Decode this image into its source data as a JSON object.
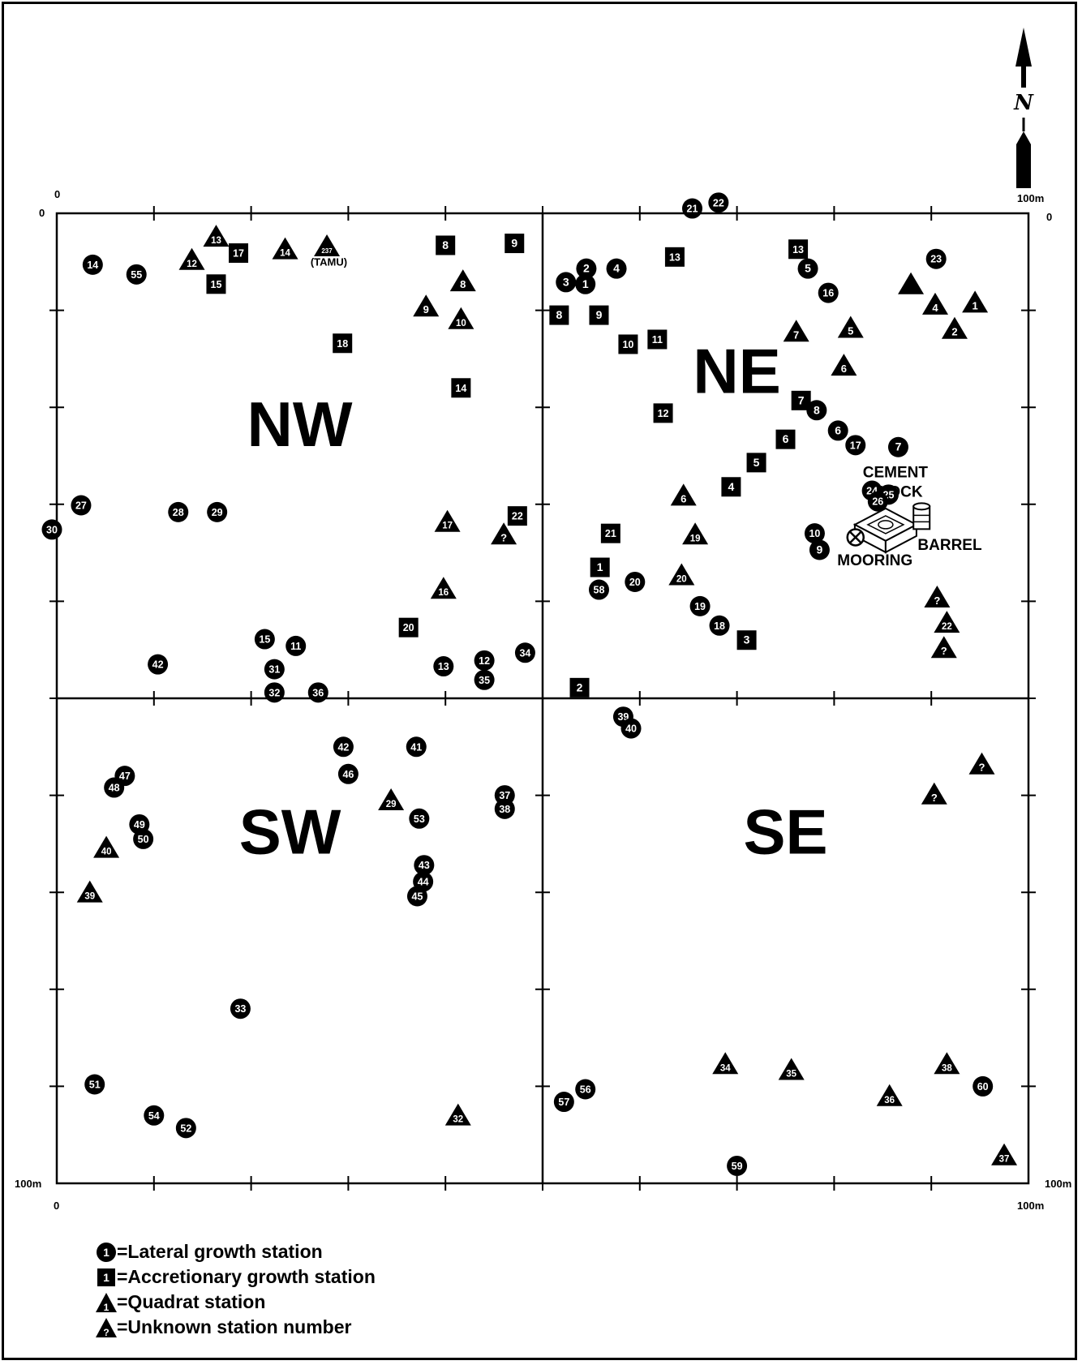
{
  "map": {
    "north_label": "N",
    "quadrants": [
      {
        "label": "NW",
        "x": 25,
        "y": 24
      },
      {
        "label": "NE",
        "x": 70,
        "y": 18.5
      },
      {
        "label": "SW",
        "x": 24,
        "y": 66
      },
      {
        "label": "SE",
        "x": 75,
        "y": 66
      }
    ],
    "axis_labels": {
      "top_left_outer": "0",
      "top_left_inner": "0",
      "top_right_outer": "100m",
      "top_right_inner": "0",
      "bottom_left_outer": "100m",
      "bottom_left_below": "0",
      "bottom_right_outer": "100m",
      "bottom_right_below": "100m"
    },
    "annotations": {
      "cement_block": "CEMENT\nBLOCK",
      "barrel": "BARREL",
      "mooring": "MOORING",
      "tamu": "(TAMU)"
    },
    "lateral_stations": [
      {
        "n": "14",
        "x": 3.7,
        "y": 5.3
      },
      {
        "n": "55",
        "x": 8.2,
        "y": 6.3
      },
      {
        "n": "27",
        "x": 2.5,
        "y": 30.1
      },
      {
        "n": "30",
        "x": -0.5,
        "y": 32.6
      },
      {
        "n": "28",
        "x": 12.5,
        "y": 30.8
      },
      {
        "n": "29",
        "x": 16.5,
        "y": 30.8
      },
      {
        "n": "33",
        "x": 18.9,
        "y": 82.0
      },
      {
        "n": "15",
        "x": 21.4,
        "y": 43.9
      },
      {
        "n": "11",
        "x": 24.6,
        "y": 44.6
      },
      {
        "n": "31",
        "x": 22.4,
        "y": 47.0
      },
      {
        "n": "32",
        "x": 22.4,
        "y": 49.4
      },
      {
        "n": "36",
        "x": 26.9,
        "y": 49.4
      },
      {
        "n": "42",
        "x": 10.4,
        "y": 46.5
      },
      {
        "n": "13",
        "x": 39.8,
        "y": 46.7
      },
      {
        "n": "12",
        "x": 44.0,
        "y": 46.1
      },
      {
        "n": "35",
        "x": 44.0,
        "y": 48.1
      },
      {
        "n": "34",
        "x": 48.2,
        "y": 45.3
      },
      {
        "n": "21",
        "x": 65.4,
        "y": -0.5
      },
      {
        "n": "22",
        "x": 68.1,
        "y": -1.1
      },
      {
        "n": "2",
        "x": 54.5,
        "y": 5.7
      },
      {
        "n": "4",
        "x": 57.6,
        "y": 5.7
      },
      {
        "n": "3",
        "x": 52.4,
        "y": 7.1
      },
      {
        "n": "1",
        "x": 54.4,
        "y": 7.3
      },
      {
        "n": "23",
        "x": 90.5,
        "y": 4.7
      },
      {
        "n": "5",
        "x": 77.3,
        "y": 5.7
      },
      {
        "n": "16",
        "x": 79.4,
        "y": 8.2
      },
      {
        "n": "8",
        "x": 78.2,
        "y": 20.3
      },
      {
        "n": "6",
        "x": 80.4,
        "y": 22.4
      },
      {
        "n": "17",
        "x": 82.2,
        "y": 23.9
      },
      {
        "n": "7",
        "x": 86.6,
        "y": 24.1
      },
      {
        "n": "24",
        "x": 83.9,
        "y": 28.6
      },
      {
        "n": "25",
        "x": 85.6,
        "y": 29.0
      },
      {
        "n": "26",
        "x": 84.5,
        "y": 29.7
      },
      {
        "n": "10",
        "x": 78.0,
        "y": 33.0
      },
      {
        "n": "9",
        "x": 78.5,
        "y": 34.7
      },
      {
        "n": "58",
        "x": 55.8,
        "y": 38.8
      },
      {
        "n": "20",
        "x": 59.5,
        "y": 38.0
      },
      {
        "n": "19",
        "x": 66.2,
        "y": 40.5
      },
      {
        "n": "18",
        "x": 68.2,
        "y": 42.5
      },
      {
        "n": "39",
        "x": 58.3,
        "y": 51.9
      },
      {
        "n": "40",
        "x": 59.1,
        "y": 53.1
      },
      {
        "n": "42",
        "x": 29.5,
        "y": 55.0
      },
      {
        "n": "41",
        "x": 37.0,
        "y": 55.0
      },
      {
        "n": "47",
        "x": 7.0,
        "y": 58.0
      },
      {
        "n": "48",
        "x": 5.9,
        "y": 59.2
      },
      {
        "n": "46",
        "x": 30.0,
        "y": 57.8
      },
      {
        "n": "37",
        "x": 46.1,
        "y": 60.0
      },
      {
        "n": "38",
        "x": 46.1,
        "y": 61.4
      },
      {
        "n": "53",
        "x": 37.3,
        "y": 62.4
      },
      {
        "n": "49",
        "x": 8.5,
        "y": 63.0
      },
      {
        "n": "50",
        "x": 8.9,
        "y": 64.5
      },
      {
        "n": "43",
        "x": 37.8,
        "y": 67.2
      },
      {
        "n": "44",
        "x": 37.7,
        "y": 68.9
      },
      {
        "n": "45",
        "x": 37.1,
        "y": 70.4
      },
      {
        "n": "51",
        "x": 3.9,
        "y": 89.8
      },
      {
        "n": "54",
        "x": 10.0,
        "y": 93.0
      },
      {
        "n": "52",
        "x": 13.3,
        "y": 94.3
      },
      {
        "n": "56",
        "x": 54.4,
        "y": 90.3
      },
      {
        "n": "57",
        "x": 52.2,
        "y": 91.6
      },
      {
        "n": "60",
        "x": 95.3,
        "y": 90.0
      },
      {
        "n": "59",
        "x": 70.0,
        "y": 98.2
      }
    ],
    "accretionary_stations": [
      {
        "n": "17",
        "x": 18.7,
        "y": 4.1
      },
      {
        "n": "15",
        "x": 16.4,
        "y": 7.3
      },
      {
        "n": "18",
        "x": 29.4,
        "y": 13.4
      },
      {
        "n": "8",
        "x": 40.0,
        "y": 3.3
      },
      {
        "n": "9",
        "x": 47.1,
        "y": 3.1
      },
      {
        "n": "14",
        "x": 41.6,
        "y": 18.0
      },
      {
        "n": "22",
        "x": 47.4,
        "y": 31.2
      },
      {
        "n": "20",
        "x": 36.2,
        "y": 42.7
      },
      {
        "n": "13",
        "x": 63.6,
        "y": 4.5
      },
      {
        "n": "8",
        "x": 51.7,
        "y": 10.5
      },
      {
        "n": "9",
        "x": 55.8,
        "y": 10.5
      },
      {
        "n": "10",
        "x": 58.8,
        "y": 13.5
      },
      {
        "n": "11",
        "x": 61.8,
        "y": 13.0
      },
      {
        "n": "12",
        "x": 62.4,
        "y": 20.6
      },
      {
        "n": "13",
        "x": 76.3,
        "y": 3.7
      },
      {
        "n": "7",
        "x": 76.6,
        "y": 19.3
      },
      {
        "n": "6",
        "x": 75.0,
        "y": 23.3
      },
      {
        "n": "5",
        "x": 72.0,
        "y": 25.7
      },
      {
        "n": "4",
        "x": 69.4,
        "y": 28.2
      },
      {
        "n": "21",
        "x": 57.0,
        "y": 33.0
      },
      {
        "n": "1",
        "x": 55.9,
        "y": 36.5
      },
      {
        "n": "3",
        "x": 71.0,
        "y": 44.0
      },
      {
        "n": "2",
        "x": 53.8,
        "y": 48.9
      }
    ],
    "quadrat_stations": [
      {
        "n": "13",
        "x": 16.4,
        "y": 2.6
      },
      {
        "n": "12",
        "x": 13.9,
        "y": 5.0
      },
      {
        "n": "14",
        "x": 23.5,
        "y": 3.9
      },
      {
        "n": "237",
        "x": 27.8,
        "y": 3.6
      },
      {
        "n": "8",
        "x": 41.8,
        "y": 7.2
      },
      {
        "n": "9",
        "x": 38.0,
        "y": 9.8
      },
      {
        "n": "10",
        "x": 41.6,
        "y": 11.1
      },
      {
        "n": "17",
        "x": 40.2,
        "y": 32.0
      },
      {
        "n": "16",
        "x": 39.8,
        "y": 38.9
      },
      {
        "n": "7",
        "x": 76.1,
        "y": 12.4
      },
      {
        "n": "5",
        "x": 81.7,
        "y": 12.0
      },
      {
        "n": "6",
        "x": 81.0,
        "y": 15.9
      },
      {
        "n": "",
        "x": 87.9,
        "y": 7.5
      },
      {
        "n": "4",
        "x": 90.4,
        "y": 9.6
      },
      {
        "n": "1",
        "x": 94.5,
        "y": 9.4
      },
      {
        "n": "2",
        "x": 92.4,
        "y": 12.1
      },
      {
        "n": "6",
        "x": 64.5,
        "y": 29.3
      },
      {
        "n": "19",
        "x": 65.7,
        "y": 33.3
      },
      {
        "n": "20",
        "x": 64.3,
        "y": 37.5
      },
      {
        "n": "22",
        "x": 91.6,
        "y": 42.4
      },
      {
        "n": "29",
        "x": 34.4,
        "y": 60.7
      },
      {
        "n": "40",
        "x": 5.1,
        "y": 65.6
      },
      {
        "n": "39",
        "x": 3.4,
        "y": 70.2
      },
      {
        "n": "32",
        "x": 41.3,
        "y": 93.2
      },
      {
        "n": "34",
        "x": 68.8,
        "y": 87.9
      },
      {
        "n": "35",
        "x": 75.6,
        "y": 88.5
      },
      {
        "n": "38",
        "x": 91.6,
        "y": 87.9
      },
      {
        "n": "36",
        "x": 85.7,
        "y": 91.2
      },
      {
        "n": "37",
        "x": 97.5,
        "y": 97.3
      }
    ],
    "unknown_stations": [
      {
        "x": 46.0,
        "y": 33.3
      },
      {
        "x": 90.6,
        "y": 39.8
      },
      {
        "x": 91.3,
        "y": 45.0
      },
      {
        "x": 95.2,
        "y": 57.0
      },
      {
        "x": 90.3,
        "y": 60.1
      }
    ]
  },
  "legend": [
    {
      "type": "circle",
      "label": "=Lateral growth station",
      "symbol": "1"
    },
    {
      "type": "square",
      "label": "=Accretionary growth station",
      "symbol": "1"
    },
    {
      "type": "triangle",
      "label": "=Quadrat station",
      "symbol": "1"
    },
    {
      "type": "triangle-q",
      "label": "=Unknown station number",
      "symbol": "?"
    }
  ],
  "colors": {
    "ink": "#000000",
    "paper": "#ffffff"
  }
}
